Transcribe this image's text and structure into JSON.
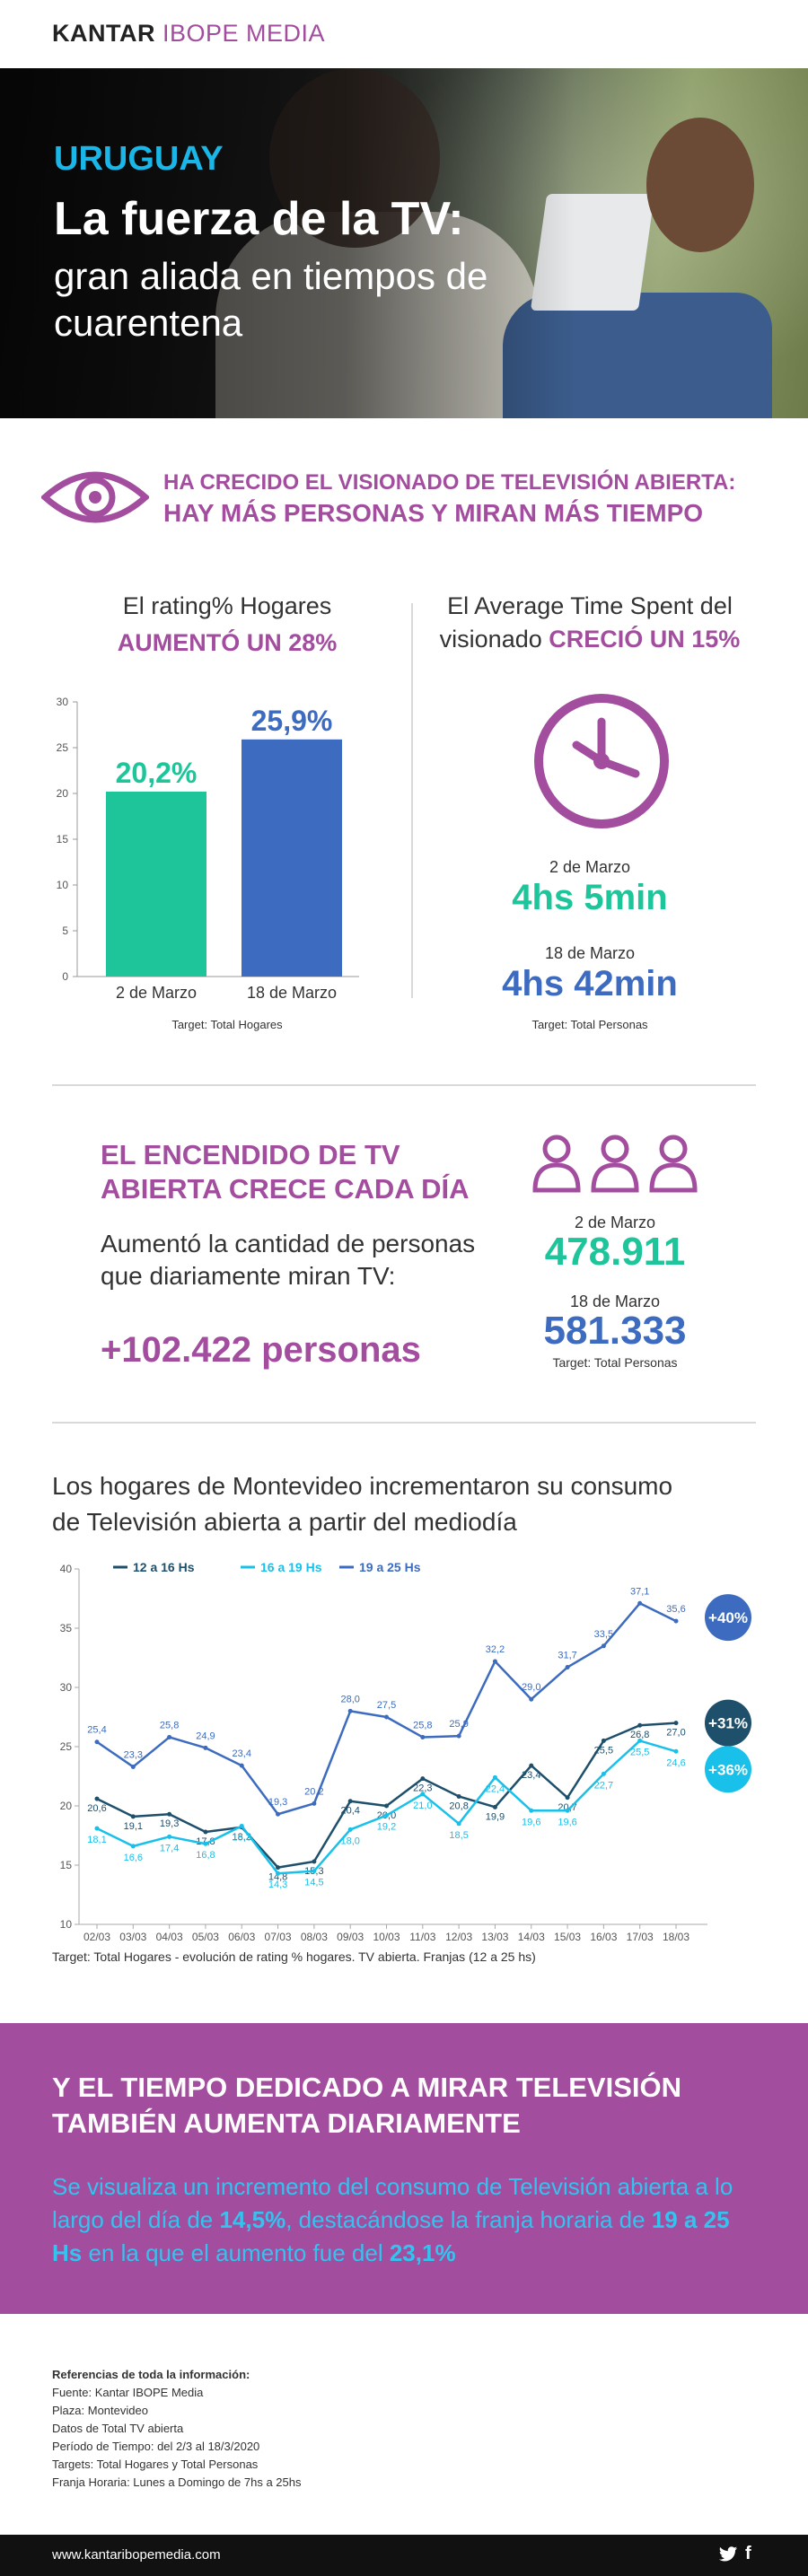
{
  "header": {
    "brand_a": "KANTAR",
    "brand_b": "IBOPE MEDIA"
  },
  "hero": {
    "country": "URUGUAY",
    "title_line1": "La fuerza de la TV:",
    "title_line2": "gran aliada en tiempos de cuarentena"
  },
  "intro": {
    "line1": "HA CRECIDO EL VISIONADO DE TELEVISIÓN ABIERTA:",
    "line2": "HAY MÁS PERSONAS Y MIRAN MÁS TIEMPO"
  },
  "rating": {
    "label": "El rating% Hogares",
    "highlight": "AUMENTÓ UN 28%",
    "target": "Target: Total Hogares"
  },
  "ats": {
    "label_a": "El Average Time Spent del",
    "label_b": "visionado",
    "highlight": "CRECIÓ UN 15%",
    "date1": "2 de Marzo",
    "value1": "4hs 5min",
    "date2": "18 de Marzo",
    "value2": "4hs 42min",
    "target": "Target: Total Personas"
  },
  "encendido": {
    "title": "EL ENCENDIDO DE TV ABIERTA CRECE CADA DÍA",
    "text": "Aumentó la cantidad de personas que diariamente miran TV:",
    "big": "+102.422 personas",
    "date1": "2 de Marzo",
    "value1": "478.911",
    "date2": "18 de Marzo",
    "value2": "581.333",
    "target": "Target: Total Personas"
  },
  "line_section": {
    "title": "Los hogares de Montevideo incrementaron su consumo de Televisión abierta a partir del mediodía",
    "target": "Target: Total Hogares - evolución de rating % hogares. TV abierta. Franjas (12 a 25 hs)"
  },
  "band": {
    "title": "Y EL TIEMPO DEDICADO A MIRAR TELEVISIÓN TAMBIÉN AUMENTA DIARIAMENTE",
    "t1": "Se visualiza un incremento del consumo de Televisión abierta a lo largo del día de ",
    "b1": "14,5%",
    "t2": ", destacándose la franja horaria de ",
    "b2": "19 a 25 Hs",
    "t3": " en la que el aumento fue del ",
    "b3": "23,1%"
  },
  "refs": {
    "title": "Referencias de toda la información:",
    "lines": [
      "Fuente: Kantar IBOPE Media",
      "Plaza: Montevideo",
      "Datos de Total TV abierta",
      "Período de Tiempo: del 2/3 al 18/3/2020",
      "Targets: Total Hogares y Total Personas",
      "Franja Horaria: Lunes a Domingo de 7hs a 25hs"
    ]
  },
  "footer": {
    "url": "www.kantaribopemedia.com"
  },
  "colors": {
    "purple": "#a24d9e",
    "green": "#1fc59a",
    "blue": "#3d6bbf",
    "dark_teal": "#1e4f6b",
    "cyan": "#19c0ea"
  },
  "icons": [
    "eye-icon",
    "clock-icon",
    "person-icon",
    "twitter-icon",
    "facebook-icon"
  ],
  "chart_data": [
    {
      "type": "bar",
      "categories": [
        "2 de Marzo",
        "18 de Marzo"
      ],
      "values": [
        20.2,
        25.9
      ],
      "value_labels": [
        "20,2%",
        "25,9%"
      ],
      "ylim": [
        0,
        30
      ],
      "yticks": [
        0,
        5,
        10,
        15,
        20,
        25,
        30
      ],
      "colors": [
        "#1fc59a",
        "#3d6bbf"
      ]
    },
    {
      "type": "line",
      "x": [
        "02/03",
        "03/03",
        "04/03",
        "05/03",
        "06/03",
        "07/03",
        "08/03",
        "09/03",
        "10/03",
        "11/03",
        "12/03",
        "13/03",
        "14/03",
        "15/03",
        "16/03",
        "17/03",
        "18/03"
      ],
      "ylim": [
        10,
        40
      ],
      "yticks": [
        10,
        15,
        20,
        25,
        30,
        35,
        40
      ],
      "grid": false,
      "legend": "top-left",
      "series": [
        {
          "name": "12 a 16 Hs",
          "color": "#1e4f6b",
          "values": [
            20.6,
            19.1,
            19.3,
            17.8,
            18.2,
            14.8,
            15.3,
            20.4,
            20.0,
            22.3,
            20.8,
            19.9,
            23.4,
            20.7,
            25.5,
            26.8,
            27.0
          ],
          "labels": [
            "20,6",
            "19,1",
            "19,3",
            "17,8",
            "18,2",
            "14,8",
            "15,3",
            "20,4",
            "20,0",
            "22,3",
            "20,8",
            "19,9",
            "23,4",
            "20,7",
            "25,5",
            "26,8",
            "27,0"
          ],
          "badge": "+31%"
        },
        {
          "name": "16 a 19 Hs",
          "color": "#19c0ea",
          "values": [
            18.1,
            16.6,
            17.4,
            16.8,
            18.3,
            14.3,
            14.5,
            18.0,
            19.2,
            21.0,
            18.5,
            22.4,
            19.6,
            19.6,
            22.7,
            25.5,
            24.6
          ],
          "labels": [
            "18,1",
            "16,6",
            "17,4",
            "16,8",
            "18,3",
            "14,3",
            "14,5",
            "18,0",
            "19,2",
            "21,0",
            "18,5",
            "22,4",
            "19,6",
            "19,6",
            "22,7",
            "25,5",
            "24,6"
          ],
          "badge": "+36%"
        },
        {
          "name": "19 a 25 Hs",
          "color": "#3d6bbf",
          "values": [
            25.4,
            23.3,
            25.8,
            24.9,
            23.4,
            19.3,
            20.2,
            28.0,
            27.5,
            25.8,
            25.9,
            32.2,
            29.0,
            31.7,
            33.5,
            37.1,
            35.6
          ],
          "labels": [
            "25,4",
            "23,3",
            "25,8",
            "24,9",
            "23,4",
            "19,3",
            "20,2",
            "28,0",
            "27,5",
            "25,8",
            "25,9",
            "32,2",
            "29,0",
            "31,7",
            "33,5",
            "37,1",
            "35,6"
          ],
          "badge": "+40%"
        }
      ]
    }
  ]
}
